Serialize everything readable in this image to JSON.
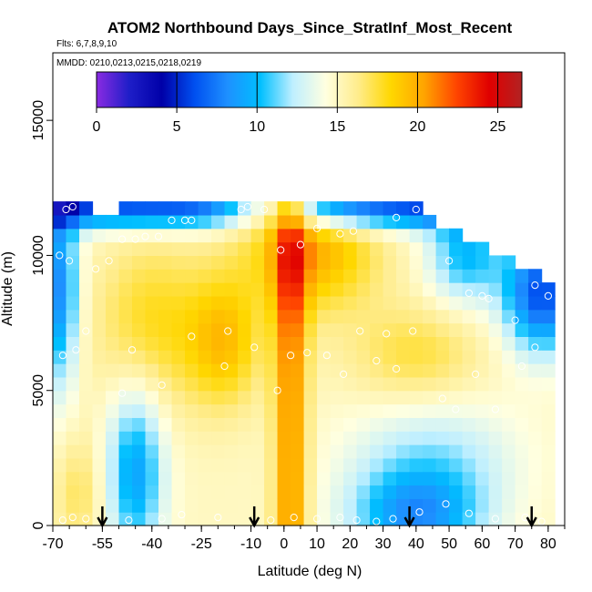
{
  "chart_data": {
    "type": "heatmap",
    "title": "ATOM2 Northbound Days_Since_StratInf_Most_Recent",
    "subtitle_flights": "Flts: 6,7,8,9,10",
    "subtitle_dates": "MMDD: 0210,0213,0215,0218,0219",
    "xlabel": "Latitude (deg N)",
    "ylabel": "Altitude (m)",
    "xlim": [
      -70,
      85
    ],
    "ylim": [
      0,
      17500
    ],
    "x_tick_values": [
      -70,
      -55,
      -40,
      -25,
      -10,
      0,
      10,
      20,
      30,
      40,
      50,
      60,
      70,
      80
    ],
    "x_tick_labels": [
      "-70",
      "-55",
      "-40",
      "-25",
      "-10",
      "0",
      "10",
      "20",
      "30",
      "40",
      "50",
      "60",
      "70",
      "80"
    ],
    "y_tick_values": [
      0,
      5000,
      10000,
      15000
    ],
    "y_tick_labels": [
      "0",
      "5000",
      "10000",
      "15000"
    ],
    "colorbar": {
      "min": 0,
      "max": 26.5,
      "tick_values": [
        0,
        5,
        10,
        15,
        20,
        25
      ],
      "tick_labels": [
        "0",
        "5",
        "10",
        "15",
        "20",
        "25"
      ],
      "colors": [
        "#8a2be2",
        "#1e1ec8",
        "#0000a8",
        "#0050f0",
        "#1e90ff",
        "#00bfff",
        "#bfefff",
        "#ffffe0",
        "#ffec8b",
        "#ffd700",
        "#ffa500",
        "#ff4500",
        "#e00000",
        "#b22222"
      ]
    },
    "latitude_bins": [
      -68,
      -64,
      -60,
      -56,
      -52,
      -48,
      -44,
      -40,
      -36,
      -32,
      -28,
      -24,
      -20,
      -16,
      -12,
      -8,
      -4,
      0,
      4,
      8,
      12,
      16,
      20,
      24,
      28,
      32,
      36,
      40,
      44,
      48,
      52,
      56,
      60,
      64,
      68,
      72,
      76,
      80
    ],
    "altitude_bins": [
      250,
      750,
      1250,
      1750,
      2250,
      2750,
      3250,
      3750,
      4250,
      4750,
      5250,
      5750,
      6250,
      6750,
      7250,
      7750,
      8250,
      8750,
      9250,
      9750,
      10250,
      10750,
      11250,
      11750
    ],
    "top_altitude_by_lat": [
      11750,
      11750,
      11750,
      11250,
      11250,
      11750,
      11750,
      11750,
      11750,
      11750,
      11750,
      11750,
      11750,
      11750,
      11750,
      11750,
      11750,
      11750,
      11750,
      11750,
      11750,
      11750,
      11750,
      11750,
      11750,
      11750,
      11750,
      11750,
      11250,
      10750,
      10750,
      10250,
      10250,
      9750,
      9750,
      9250,
      9250,
      8750
    ],
    "sample_points_lat_alt": [
      [
        -67,
        200
      ],
      [
        -64,
        300
      ],
      [
        -60,
        250
      ],
      [
        -47,
        200
      ],
      [
        -37,
        250
      ],
      [
        -31,
        400
      ],
      [
        -20,
        300
      ],
      [
        -4,
        200
      ],
      [
        3,
        300
      ],
      [
        10,
        250
      ],
      [
        17,
        300
      ],
      [
        22,
        200
      ],
      [
        28,
        150
      ],
      [
        33,
        250
      ],
      [
        41,
        500
      ],
      [
        49,
        800
      ],
      [
        56,
        450
      ],
      [
        64,
        250
      ],
      [
        73,
        300
      ],
      [
        78,
        150
      ],
      [
        -49,
        4900
      ],
      [
        -37,
        5200
      ],
      [
        -18,
        5900
      ],
      [
        -17,
        7200
      ],
      [
        -9,
        6600
      ],
      [
        -2,
        5000
      ],
      [
        2,
        6300
      ],
      [
        7,
        6400
      ],
      [
        13,
        6300
      ],
      [
        18,
        5600
      ],
      [
        23,
        7200
      ],
      [
        28,
        6100
      ],
      [
        31,
        7100
      ],
      [
        34,
        5800
      ],
      [
        39,
        7200
      ],
      [
        48,
        4700
      ],
      [
        52,
        4300
      ],
      [
        58,
        5600
      ],
      [
        64,
        4300
      ],
      [
        72,
        5900
      ],
      [
        76,
        6600
      ],
      [
        -67,
        6300
      ],
      [
        -63,
        6500
      ],
      [
        -60,
        7200
      ],
      [
        -46,
        6500
      ],
      [
        -28,
        7000
      ],
      [
        -65,
        9800
      ],
      [
        -57,
        9500
      ],
      [
        -53,
        9800
      ],
      [
        -49,
        10600
      ],
      [
        -45,
        10600
      ],
      [
        -42,
        10700
      ],
      [
        -38,
        10700
      ],
      [
        -34,
        11300
      ],
      [
        -30,
        11300
      ],
      [
        -28,
        11300
      ],
      [
        -13,
        11700
      ],
      [
        -11,
        11800
      ],
      [
        -6,
        11700
      ],
      [
        -1,
        10200
      ],
      [
        5,
        10400
      ],
      [
        10,
        11000
      ],
      [
        17,
        10800
      ],
      [
        21,
        10900
      ],
      [
        34,
        11400
      ],
      [
        40,
        11700
      ],
      [
        50,
        9800
      ],
      [
        56,
        8600
      ],
      [
        60,
        8500
      ],
      [
        62,
        8400
      ],
      [
        70,
        7600
      ],
      [
        76,
        8900
      ],
      [
        80,
        8500
      ],
      [
        -68,
        10000
      ],
      [
        -66,
        11700
      ],
      [
        -64,
        11800
      ]
    ],
    "flight_arrow_latitudes": [
      -55,
      -9,
      38,
      75
    ]
  }
}
